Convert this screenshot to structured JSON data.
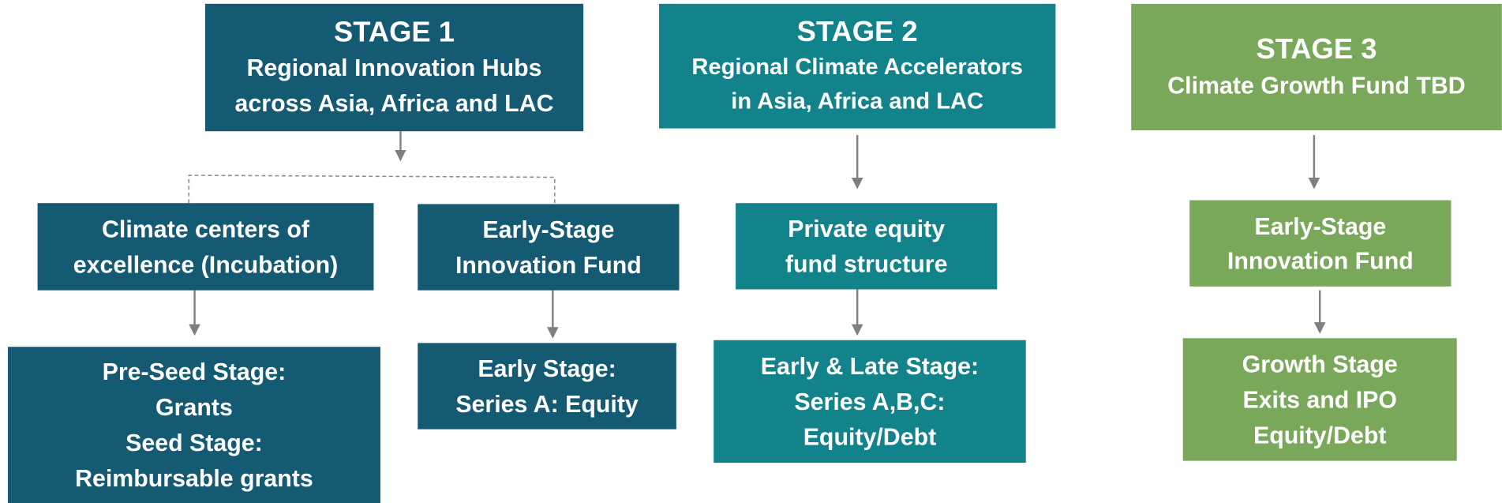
{
  "boxes": [
    {
      "lines": [
        "STAGE 1",
        "Regional Innovation Hubs",
        "across Asia, Africa and LAC"
      ]
    },
    {
      "lines": [
        "STAGE 2",
        "Regional Climate Accelerators",
        "in Asia, Africa and LAC"
      ]
    },
    {
      "lines": [
        "STAGE 3",
        "Climate Growth Fund TBD"
      ]
    },
    {
      "lines": [
        "Climate centers of",
        "excellence (Incubation)"
      ]
    },
    {
      "lines": [
        "Early-Stage",
        "Innovation Fund"
      ]
    },
    {
      "lines": [
        "Private equity",
        "fund structure"
      ]
    },
    {
      "lines": [
        "Early-Stage",
        "Innovation Fund"
      ]
    },
    {
      "lines": [
        "Pre-Seed Stage:",
        "Grants",
        "Seed Stage:",
        "Reimbursable grants"
      ]
    },
    {
      "lines": [
        "Early Stage:",
        "Series A: Equity"
      ]
    },
    {
      "lines": [
        "Early & Late Stage:",
        "Series A,B,C:",
        "Equity/Debt"
      ]
    },
    {
      "lines": [
        "Growth Stage",
        "Exits and IPO",
        "Equity/Debt"
      ]
    }
  ]
}
